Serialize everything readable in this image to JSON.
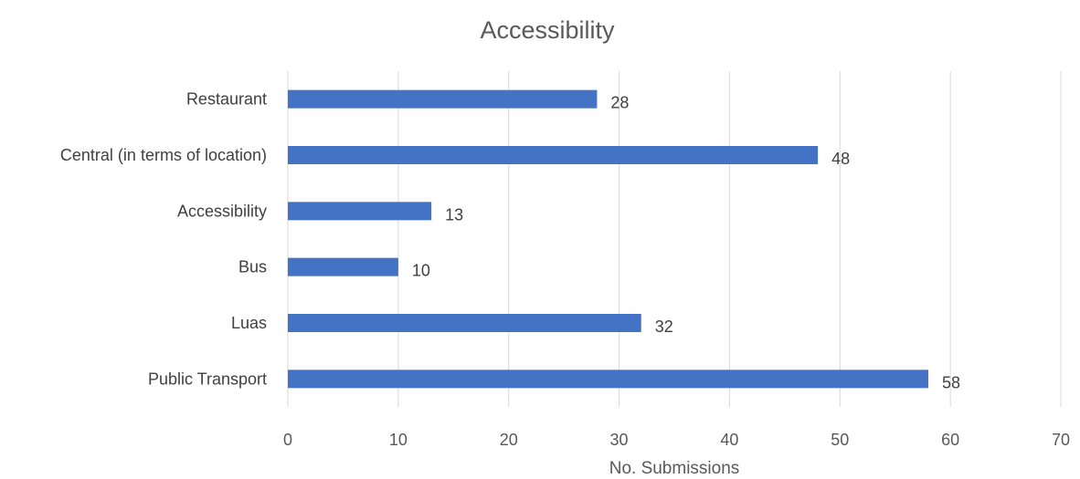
{
  "chart_data": {
    "type": "bar",
    "orientation": "horizontal",
    "title": "Accessibility",
    "xlabel": "No. Submissions",
    "ylabel": "",
    "categories": [
      "Restaurant",
      "Central (in terms of location)",
      "Accessibility",
      "Bus",
      "Luas",
      "Public Transport"
    ],
    "values": [
      28,
      48,
      13,
      10,
      32,
      58
    ],
    "xlim": [
      0,
      70
    ],
    "ticks": [
      "0",
      "10",
      "20",
      "30",
      "40",
      "50",
      "60",
      "70"
    ],
    "grid": true,
    "legend": "none",
    "bar_color": "#4472C4",
    "data_labels": [
      "28",
      "48",
      "13",
      "10",
      "32",
      "58"
    ]
  }
}
